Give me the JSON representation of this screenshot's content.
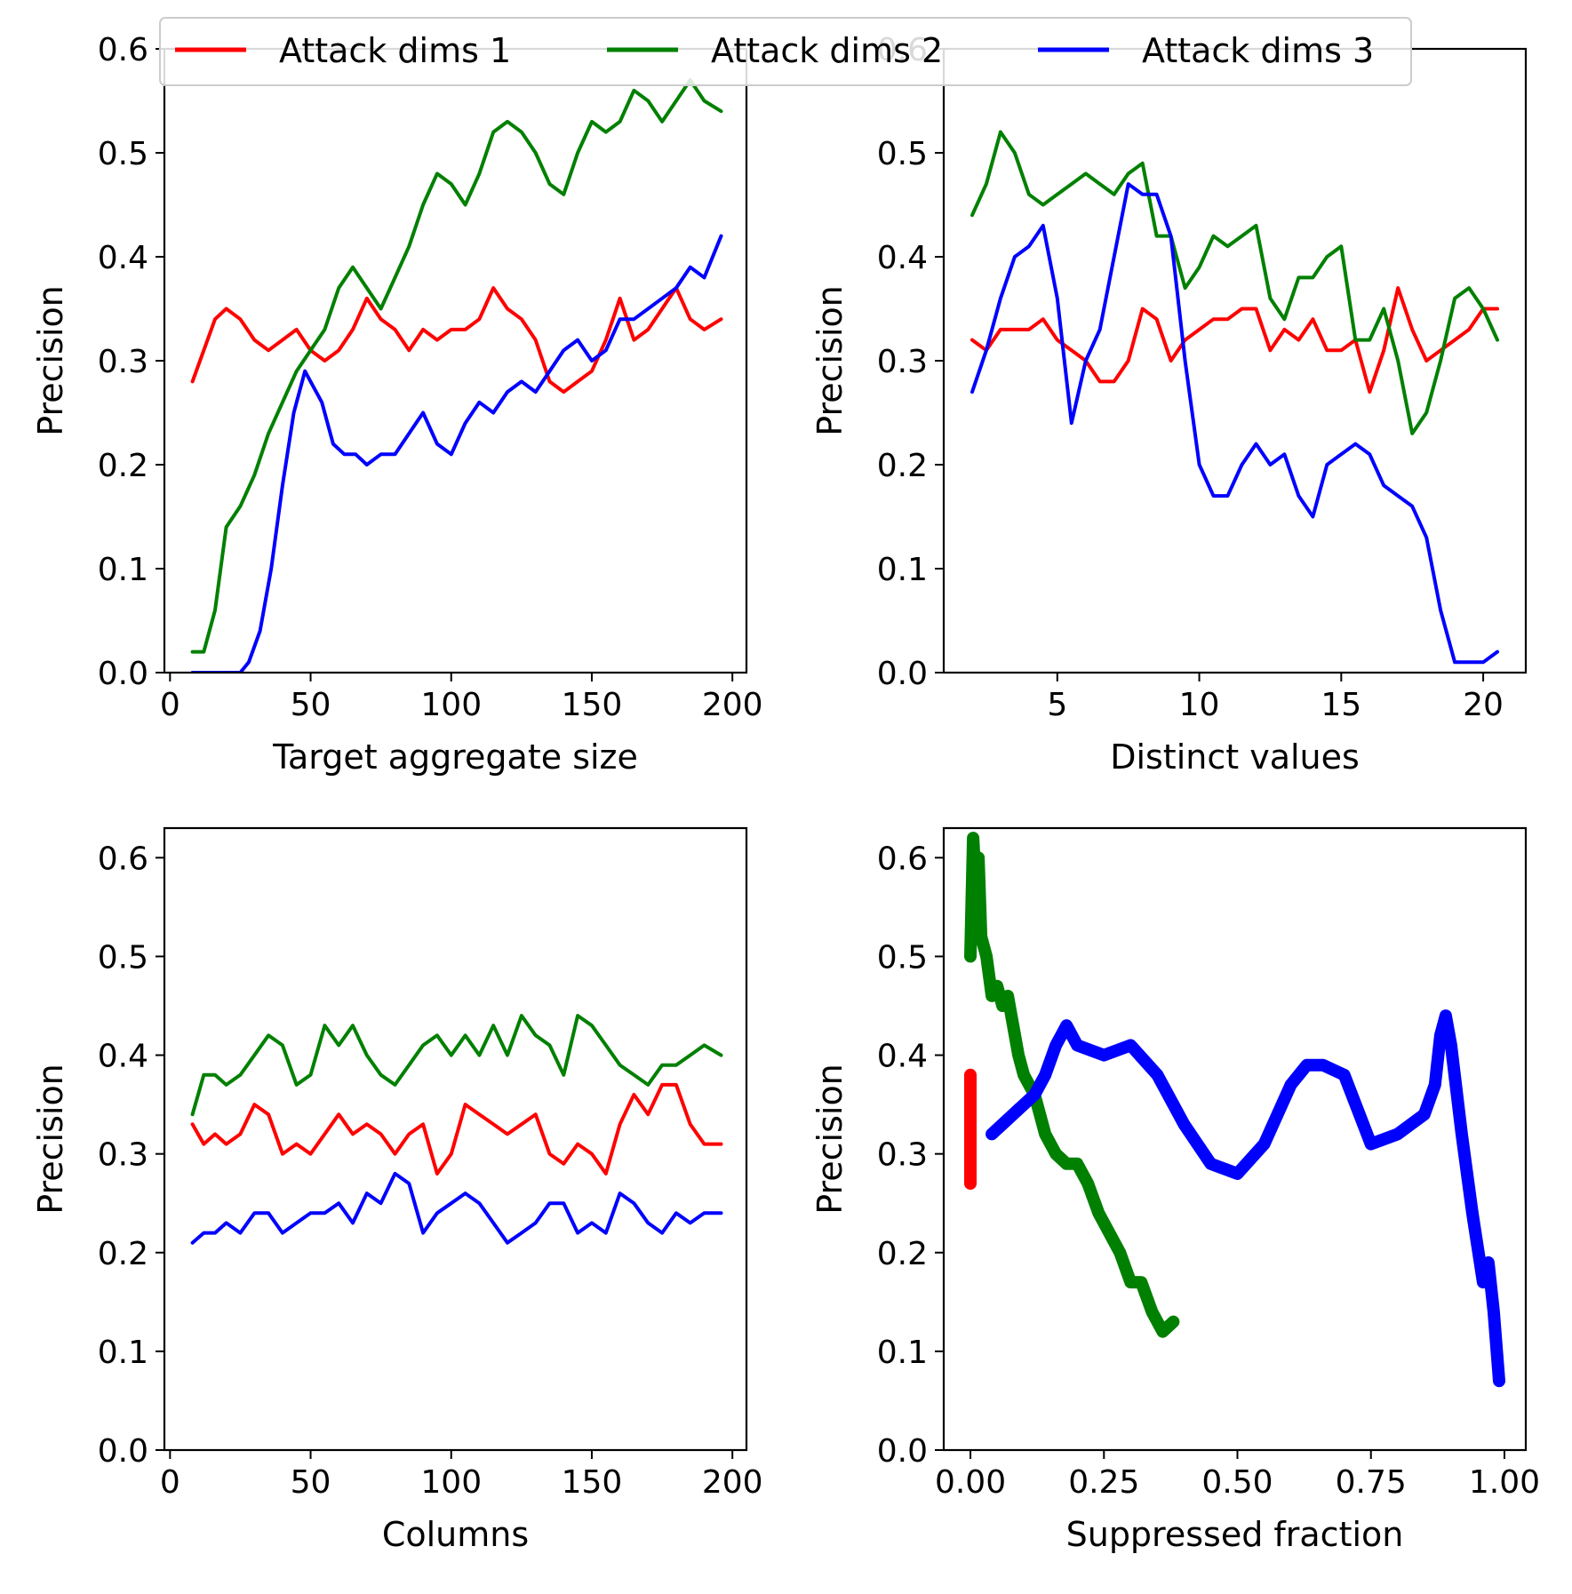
{
  "chart_data": [
    {
      "type": "line",
      "panel": "top-left",
      "xlabel": "Target aggregate size",
      "ylabel": "Precision",
      "xlim": [
        -2,
        205
      ],
      "ylim": [
        0.0,
        0.6
      ],
      "xticks": [
        0,
        50,
        100,
        150,
        200
      ],
      "yticks": [
        0.0,
        0.1,
        0.2,
        0.3,
        0.4,
        0.5,
        0.6
      ],
      "series": [
        {
          "name": "Attack dims 1",
          "color": "#ff0000",
          "x": [
            8,
            12,
            16,
            20,
            25,
            30,
            35,
            40,
            45,
            50,
            55,
            60,
            65,
            70,
            75,
            80,
            85,
            90,
            95,
            100,
            105,
            110,
            115,
            120,
            125,
            130,
            135,
            140,
            145,
            150,
            155,
            160,
            165,
            170,
            175,
            180,
            185,
            190,
            196
          ],
          "y": [
            0.28,
            0.31,
            0.34,
            0.35,
            0.34,
            0.32,
            0.31,
            0.32,
            0.33,
            0.31,
            0.3,
            0.31,
            0.33,
            0.36,
            0.34,
            0.33,
            0.31,
            0.33,
            0.32,
            0.33,
            0.33,
            0.34,
            0.37,
            0.35,
            0.34,
            0.32,
            0.28,
            0.27,
            0.28,
            0.29,
            0.32,
            0.36,
            0.32,
            0.33,
            0.35,
            0.37,
            0.34,
            0.33,
            0.34
          ]
        },
        {
          "name": "Attack dims 2",
          "color": "#008000",
          "x": [
            8,
            12,
            16,
            20,
            25,
            30,
            35,
            40,
            45,
            50,
            55,
            60,
            65,
            70,
            75,
            80,
            85,
            90,
            95,
            100,
            105,
            110,
            115,
            120,
            125,
            130,
            135,
            140,
            145,
            150,
            155,
            160,
            165,
            170,
            175,
            180,
            185,
            190,
            196
          ],
          "y": [
            0.02,
            0.02,
            0.06,
            0.14,
            0.16,
            0.19,
            0.23,
            0.26,
            0.29,
            0.31,
            0.33,
            0.37,
            0.39,
            0.37,
            0.35,
            0.38,
            0.41,
            0.45,
            0.48,
            0.47,
            0.45,
            0.48,
            0.52,
            0.53,
            0.52,
            0.5,
            0.47,
            0.46,
            0.5,
            0.53,
            0.52,
            0.53,
            0.56,
            0.55,
            0.53,
            0.55,
            0.57,
            0.55,
            0.54
          ]
        },
        {
          "name": "Attack dims 3",
          "color": "#0000ff",
          "x": [
            8,
            15,
            20,
            25,
            28,
            32,
            36,
            40,
            44,
            48,
            50,
            54,
            58,
            62,
            66,
            70,
            75,
            80,
            85,
            90,
            95,
            100,
            105,
            110,
            115,
            120,
            125,
            130,
            135,
            140,
            145,
            150,
            155,
            160,
            165,
            170,
            175,
            180,
            185,
            190,
            196
          ],
          "y": [
            0.0,
            0.0,
            0.0,
            0.0,
            0.01,
            0.04,
            0.1,
            0.18,
            0.25,
            0.29,
            0.28,
            0.26,
            0.22,
            0.21,
            0.21,
            0.2,
            0.21,
            0.21,
            0.23,
            0.25,
            0.22,
            0.21,
            0.24,
            0.26,
            0.25,
            0.27,
            0.28,
            0.27,
            0.29,
            0.31,
            0.32,
            0.3,
            0.31,
            0.34,
            0.34,
            0.35,
            0.36,
            0.37,
            0.39,
            0.38,
            0.42
          ]
        }
      ]
    },
    {
      "type": "line",
      "panel": "top-right",
      "xlabel": "Distinct values",
      "ylabel": "Precision",
      "xlim": [
        1.0,
        21.5
      ],
      "ylim": [
        0.0,
        0.6
      ],
      "xticks": [
        5,
        10,
        15,
        20
      ],
      "yticks": [
        0.0,
        0.1,
        0.2,
        0.3,
        0.4,
        0.5,
        0.6
      ],
      "series": [
        {
          "name": "Attack dims 1",
          "color": "#ff0000",
          "x": [
            2.0,
            2.5,
            3.0,
            3.5,
            4.0,
            4.5,
            5.0,
            5.5,
            6.0,
            6.5,
            7.0,
            7.5,
            8.0,
            8.5,
            9.0,
            9.5,
            10.0,
            10.5,
            11.0,
            11.5,
            12.0,
            12.5,
            13.0,
            13.5,
            14.0,
            14.5,
            15.0,
            15.5,
            16.0,
            16.5,
            17.0,
            17.5,
            18.0,
            18.5,
            19.0,
            19.5,
            20.0,
            20.5
          ],
          "y": [
            0.32,
            0.31,
            0.33,
            0.33,
            0.33,
            0.34,
            0.32,
            0.31,
            0.3,
            0.28,
            0.28,
            0.3,
            0.35,
            0.34,
            0.3,
            0.32,
            0.33,
            0.34,
            0.34,
            0.35,
            0.35,
            0.31,
            0.33,
            0.32,
            0.34,
            0.31,
            0.31,
            0.32,
            0.27,
            0.31,
            0.37,
            0.33,
            0.3,
            0.31,
            0.32,
            0.33,
            0.35,
            0.35
          ]
        },
        {
          "name": "Attack dims 2",
          "color": "#008000",
          "x": [
            2.0,
            2.5,
            3.0,
            3.5,
            4.0,
            4.5,
            5.0,
            5.5,
            6.0,
            6.5,
            7.0,
            7.5,
            8.0,
            8.5,
            9.0,
            9.5,
            10.0,
            10.5,
            11.0,
            11.5,
            12.0,
            12.5,
            13.0,
            13.5,
            14.0,
            14.5,
            15.0,
            15.5,
            16.0,
            16.5,
            17.0,
            17.5,
            18.0,
            18.5,
            19.0,
            19.5,
            20.0,
            20.5
          ],
          "y": [
            0.44,
            0.47,
            0.52,
            0.5,
            0.46,
            0.45,
            0.46,
            0.47,
            0.48,
            0.47,
            0.46,
            0.48,
            0.49,
            0.42,
            0.42,
            0.37,
            0.39,
            0.42,
            0.41,
            0.42,
            0.43,
            0.36,
            0.34,
            0.38,
            0.38,
            0.4,
            0.41,
            0.32,
            0.32,
            0.35,
            0.3,
            0.23,
            0.25,
            0.3,
            0.36,
            0.37,
            0.35,
            0.32
          ]
        },
        {
          "name": "Attack dims 3",
          "color": "#0000ff",
          "x": [
            2.0,
            2.5,
            3.0,
            3.5,
            4.0,
            4.5,
            5.0,
            5.5,
            6.0,
            6.5,
            7.0,
            7.5,
            8.0,
            8.5,
            9.0,
            9.5,
            10.0,
            10.5,
            11.0,
            11.5,
            12.0,
            12.5,
            13.0,
            13.5,
            14.0,
            14.5,
            15.0,
            15.5,
            16.0,
            16.5,
            17.0,
            17.5,
            18.0,
            18.5,
            19.0,
            19.5,
            20.0,
            20.5
          ],
          "y": [
            0.27,
            0.31,
            0.36,
            0.4,
            0.41,
            0.43,
            0.36,
            0.24,
            0.3,
            0.33,
            0.4,
            0.47,
            0.46,
            0.46,
            0.42,
            0.3,
            0.2,
            0.17,
            0.17,
            0.2,
            0.22,
            0.2,
            0.21,
            0.17,
            0.15,
            0.2,
            0.21,
            0.22,
            0.21,
            0.18,
            0.17,
            0.16,
            0.13,
            0.06,
            0.01,
            0.01,
            0.01,
            0.02
          ]
        }
      ]
    },
    {
      "type": "line",
      "panel": "bottom-left",
      "xlabel": "Columns",
      "ylabel": "Precision",
      "xlim": [
        -2,
        205
      ],
      "ylim": [
        0.0,
        0.63
      ],
      "xticks": [
        0,
        50,
        100,
        150,
        200
      ],
      "yticks": [
        0.0,
        0.1,
        0.2,
        0.3,
        0.4,
        0.5,
        0.6
      ],
      "series": [
        {
          "name": "Attack dims 1",
          "color": "#ff0000",
          "x": [
            8,
            12,
            16,
            20,
            25,
            30,
            35,
            40,
            45,
            50,
            55,
            60,
            65,
            70,
            75,
            80,
            85,
            90,
            95,
            100,
            105,
            110,
            115,
            120,
            125,
            130,
            135,
            140,
            145,
            150,
            155,
            160,
            165,
            170,
            175,
            180,
            185,
            190,
            196
          ],
          "y": [
            0.33,
            0.31,
            0.32,
            0.31,
            0.32,
            0.35,
            0.34,
            0.3,
            0.31,
            0.3,
            0.32,
            0.34,
            0.32,
            0.33,
            0.32,
            0.3,
            0.32,
            0.33,
            0.28,
            0.3,
            0.35,
            0.34,
            0.33,
            0.32,
            0.33,
            0.34,
            0.3,
            0.29,
            0.31,
            0.3,
            0.28,
            0.33,
            0.36,
            0.34,
            0.37,
            0.37,
            0.33,
            0.31,
            0.31
          ]
        },
        {
          "name": "Attack dims 2",
          "color": "#008000",
          "x": [
            8,
            12,
            16,
            20,
            25,
            30,
            35,
            40,
            45,
            50,
            55,
            60,
            65,
            70,
            75,
            80,
            85,
            90,
            95,
            100,
            105,
            110,
            115,
            120,
            125,
            130,
            135,
            140,
            145,
            150,
            155,
            160,
            165,
            170,
            175,
            180,
            185,
            190,
            196
          ],
          "y": [
            0.34,
            0.38,
            0.38,
            0.37,
            0.38,
            0.4,
            0.42,
            0.41,
            0.37,
            0.38,
            0.43,
            0.41,
            0.43,
            0.4,
            0.38,
            0.37,
            0.39,
            0.41,
            0.42,
            0.4,
            0.42,
            0.4,
            0.43,
            0.4,
            0.44,
            0.42,
            0.41,
            0.38,
            0.44,
            0.43,
            0.41,
            0.39,
            0.38,
            0.37,
            0.39,
            0.39,
            0.4,
            0.41,
            0.4
          ]
        },
        {
          "name": "Attack dims 3",
          "color": "#0000ff",
          "x": [
            8,
            12,
            16,
            20,
            25,
            30,
            35,
            40,
            45,
            50,
            55,
            60,
            65,
            70,
            75,
            80,
            85,
            90,
            95,
            100,
            105,
            110,
            115,
            120,
            125,
            130,
            135,
            140,
            145,
            150,
            155,
            160,
            165,
            170,
            175,
            180,
            185,
            190,
            196
          ],
          "y": [
            0.21,
            0.22,
            0.22,
            0.23,
            0.22,
            0.24,
            0.24,
            0.22,
            0.23,
            0.24,
            0.24,
            0.25,
            0.23,
            0.26,
            0.25,
            0.28,
            0.27,
            0.22,
            0.24,
            0.25,
            0.26,
            0.25,
            0.23,
            0.21,
            0.22,
            0.23,
            0.25,
            0.25,
            0.22,
            0.23,
            0.22,
            0.26,
            0.25,
            0.23,
            0.22,
            0.24,
            0.23,
            0.24,
            0.24
          ]
        }
      ]
    },
    {
      "type": "line",
      "panel": "bottom-right",
      "xlabel": "Suppressed fraction",
      "ylabel": "Precision",
      "xlim": [
        -0.05,
        1.04
      ],
      "ylim": [
        0.0,
        0.63
      ],
      "xticks": [
        0.0,
        0.25,
        0.5,
        0.75,
        1.0
      ],
      "xticklabels": [
        "0.00",
        "0.25",
        "0.50",
        "0.75",
        "1.00"
      ],
      "yticks": [
        0.0,
        0.1,
        0.2,
        0.3,
        0.4,
        0.5,
        0.6
      ],
      "series": [
        {
          "name": "Attack dims 1",
          "color": "#ff0000",
          "x": [
            0.0,
            0.0
          ],
          "y": [
            0.27,
            0.38
          ]
        },
        {
          "name": "Attack dims 2",
          "color": "#008000",
          "x": [
            0.0,
            0.005,
            0.01,
            0.015,
            0.02,
            0.03,
            0.04,
            0.05,
            0.06,
            0.07,
            0.08,
            0.09,
            0.1,
            0.11,
            0.12,
            0.13,
            0.14,
            0.16,
            0.18,
            0.2,
            0.22,
            0.24,
            0.26,
            0.28,
            0.3,
            0.32,
            0.34,
            0.36,
            0.38
          ],
          "y": [
            0.5,
            0.62,
            0.57,
            0.6,
            0.52,
            0.5,
            0.46,
            0.47,
            0.45,
            0.46,
            0.43,
            0.4,
            0.38,
            0.37,
            0.36,
            0.34,
            0.32,
            0.3,
            0.29,
            0.29,
            0.27,
            0.24,
            0.22,
            0.2,
            0.17,
            0.17,
            0.14,
            0.12,
            0.13
          ]
        },
        {
          "name": "Attack dims 3",
          "color": "#0000ff",
          "x": [
            0.04,
            0.06,
            0.08,
            0.1,
            0.12,
            0.14,
            0.16,
            0.18,
            0.2,
            0.25,
            0.3,
            0.35,
            0.4,
            0.45,
            0.5,
            0.55,
            0.6,
            0.63,
            0.66,
            0.7,
            0.75,
            0.8,
            0.85,
            0.87,
            0.88,
            0.89,
            0.9,
            0.92,
            0.94,
            0.96,
            0.97,
            0.98,
            0.99
          ],
          "y": [
            0.32,
            0.33,
            0.34,
            0.35,
            0.36,
            0.38,
            0.41,
            0.43,
            0.41,
            0.4,
            0.41,
            0.38,
            0.33,
            0.29,
            0.28,
            0.31,
            0.37,
            0.39,
            0.39,
            0.38,
            0.31,
            0.32,
            0.34,
            0.37,
            0.42,
            0.44,
            0.41,
            0.32,
            0.24,
            0.17,
            0.19,
            0.14,
            0.07
          ]
        }
      ]
    }
  ],
  "legend": {
    "position": "top-center",
    "items": [
      {
        "label": "Attack dims 1",
        "color": "#ff0000"
      },
      {
        "label": "Attack dims 2",
        "color": "#008000"
      },
      {
        "label": "Attack dims 3",
        "color": "#0000ff"
      }
    ]
  }
}
